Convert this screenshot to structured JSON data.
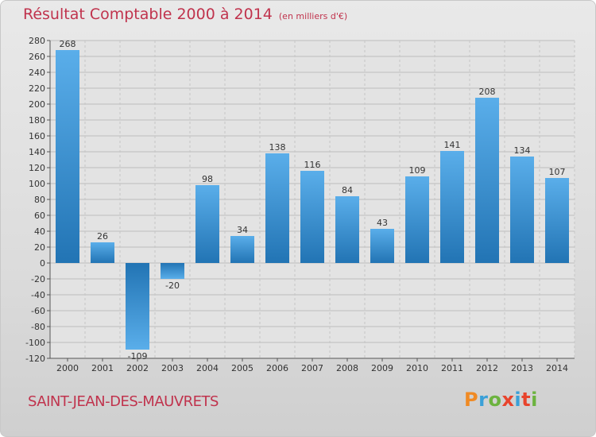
{
  "header": {
    "title": "Résultat Comptable 2000 à 2014",
    "subtitle": "(en milliers d'€)"
  },
  "footer": {
    "commune": "SAINT-JEAN-DES-MAUVRETS",
    "logo_text": "Proxiti"
  },
  "colors": {
    "title": "#c0334d",
    "bar_light": "#5aaeea",
    "bar_dark": "#2274b4",
    "logo": [
      "#f08a24",
      "#3aa0d8",
      "#6cb33f",
      "#e8442c",
      "#3aa0d8",
      "#e8442c",
      "#6cb33f"
    ]
  },
  "chart_data": {
    "type": "bar",
    "categories": [
      "2000",
      "2001",
      "2002",
      "2003",
      "2004",
      "2005",
      "2006",
      "2007",
      "2008",
      "2009",
      "2010",
      "2011",
      "2012",
      "2013",
      "2014"
    ],
    "values": [
      268,
      26,
      -109,
      -20,
      98,
      34,
      138,
      116,
      84,
      43,
      109,
      141,
      208,
      134,
      107
    ],
    "ylim": [
      -120,
      280
    ],
    "yticks": [
      -120,
      -100,
      -80,
      -60,
      -40,
      -20,
      0,
      20,
      40,
      60,
      80,
      100,
      120,
      140,
      160,
      180,
      200,
      220,
      240,
      260,
      280
    ],
    "grid": true,
    "title": "Résultat Comptable 2000 à 2014",
    "xlabel": "",
    "ylabel": ""
  }
}
